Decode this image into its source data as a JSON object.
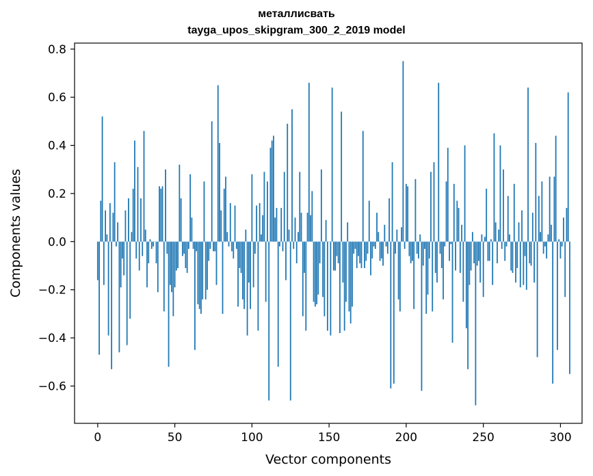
{
  "chart_data": {
    "type": "bar",
    "title": "металлисвать",
    "subtitle": "tayga_upos_skipgram_300_2_2019 model",
    "xlabel": "Vector components",
    "ylabel": "Components values",
    "xlim": [
      -15,
      314
    ],
    "ylim": [
      -0.755,
      0.825
    ],
    "xticks": [
      0,
      50,
      100,
      150,
      200,
      250,
      300
    ],
    "yticks": [
      -0.6,
      -0.4,
      -0.2,
      0.0,
      0.2,
      0.4,
      0.6,
      0.8
    ],
    "ytick_labels": [
      "−0.6",
      "−0.4",
      "−0.2",
      "0.0",
      "0.2",
      "0.4",
      "0.6",
      "0.8"
    ],
    "bar_color": "#1f77b4",
    "grid": false,
    "values": [
      -0.16,
      -0.47,
      0.17,
      0.52,
      -0.18,
      0.13,
      0.03,
      -0.39,
      0.16,
      -0.53,
      0.12,
      0.33,
      -0.02,
      0.08,
      -0.46,
      -0.19,
      -0.07,
      -0.14,
      0.13,
      -0.43,
      0.18,
      -0.32,
      0.04,
      0.22,
      0.42,
      -0.07,
      0.31,
      -0.12,
      0.18,
      -0.06,
      0.46,
      0.05,
      -0.19,
      -0.09,
      0.01,
      -0.03,
      -0.02,
      0.0,
      -0.09,
      -0.21,
      0.23,
      0.22,
      0.23,
      -0.29,
      0.3,
      -0.05,
      -0.52,
      -0.18,
      -0.21,
      -0.31,
      -0.19,
      -0.12,
      -0.11,
      0.32,
      0.18,
      -0.06,
      -0.05,
      -0.11,
      -0.13,
      -0.03,
      0.28,
      0.1,
      -0.03,
      -0.45,
      -0.04,
      -0.26,
      -0.28,
      -0.3,
      -0.24,
      0.25,
      -0.24,
      -0.2,
      -0.08,
      -0.03,
      0.5,
      -0.04,
      -0.04,
      -0.18,
      0.65,
      0.41,
      0.13,
      -0.3,
      0.22,
      0.27,
      0.04,
      -0.02,
      0.16,
      -0.04,
      -0.07,
      0.15,
      -0.03,
      -0.27,
      -0.11,
      -0.13,
      -0.24,
      -0.28,
      0.05,
      -0.39,
      -0.17,
      -0.28,
      0.28,
      -0.19,
      -0.05,
      0.15,
      -0.37,
      0.16,
      0.03,
      0.11,
      0.29,
      -0.25,
      0.25,
      -0.66,
      0.39,
      0.42,
      0.44,
      0.1,
      0.14,
      -0.52,
      -0.02,
      0.14,
      -0.04,
      0.29,
      -0.16,
      0.49,
      0.05,
      -0.66,
      0.55,
      -0.03,
      0.1,
      -0.09,
      0.04,
      0.29,
      0.12,
      -0.31,
      -0.13,
      -0.37,
      0.12,
      0.66,
      0.11,
      0.21,
      -0.25,
      -0.27,
      -0.26,
      -0.22,
      -0.09,
      0.3,
      -0.23,
      -0.31,
      0.09,
      -0.37,
      0.0,
      -0.39,
      0.64,
      -0.12,
      -0.12,
      -0.06,
      -0.09,
      -0.38,
      0.54,
      -0.17,
      -0.37,
      -0.25,
      0.08,
      -0.29,
      -0.34,
      -0.27,
      -0.05,
      -0.03,
      -0.11,
      -0.06,
      -0.09,
      -0.11,
      0.46,
      -0.11,
      -0.08,
      -0.05,
      0.17,
      -0.14,
      -0.07,
      -0.02,
      -0.03,
      0.12,
      0.04,
      -0.08,
      -0.07,
      -0.1,
      0.07,
      -0.02,
      -0.05,
      0.18,
      -0.61,
      0.33,
      -0.59,
      -0.05,
      0.05,
      -0.24,
      -0.29,
      0.06,
      0.75,
      -0.03,
      0.24,
      0.23,
      -0.06,
      -0.09,
      -0.08,
      -0.28,
      0.26,
      -0.05,
      -0.07,
      0.03,
      -0.62,
      -0.1,
      -0.03,
      -0.3,
      -0.22,
      -0.07,
      0.29,
      -0.29,
      0.33,
      -0.13,
      -0.17,
      0.66,
      -0.05,
      -0.11,
      -0.24,
      -0.02,
      0.25,
      0.39,
      -0.08,
      -0.01,
      -0.42,
      0.24,
      -0.12,
      0.17,
      0.14,
      -0.13,
      0.07,
      -0.25,
      0.4,
      -0.36,
      -0.53,
      -0.18,
      -0.12,
      0.04,
      -0.09,
      -0.68,
      -0.1,
      -0.08,
      -0.17,
      0.03,
      -0.23,
      0.02,
      0.22,
      -0.08,
      -0.08,
      0.01,
      -0.18,
      0.45,
      0.08,
      -0.09,
      0.05,
      0.4,
      -0.03,
      0.3,
      -0.08,
      -0.02,
      0.19,
      0.03,
      -0.12,
      -0.13,
      0.24,
      -0.17,
      -0.11,
      0.08,
      -0.19,
      0.13,
      -0.18,
      -0.06,
      -0.2,
      0.64,
      -0.09,
      -0.1,
      0.12,
      -0.17,
      0.41,
      -0.48,
      0.19,
      0.04,
      0.25,
      -0.05,
      -0.02,
      -0.07,
      0.03,
      0.27,
      0.07,
      -0.59,
      0.27,
      0.44,
      -0.45,
      0.01,
      -0.07,
      -0.02,
      0.1,
      -0.23,
      0.14,
      0.62,
      -0.55
    ]
  }
}
